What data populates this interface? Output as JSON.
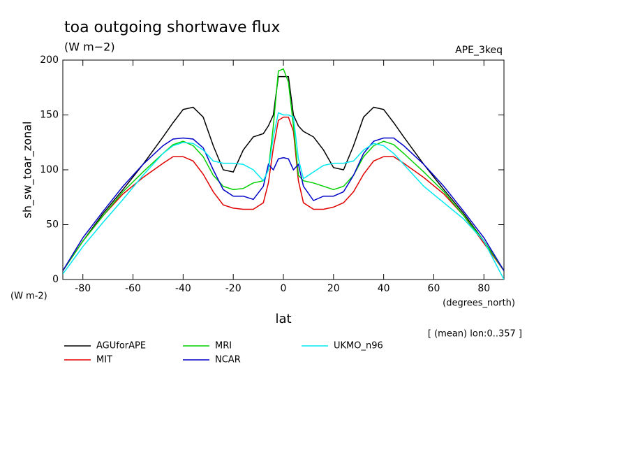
{
  "chart_data": {
    "type": "line",
    "title": "toa outgoing shortwave flux",
    "subtitle": "(W m−2)",
    "annotation_right": "APE_3keq",
    "ylabel": "sh_sw_toar_zonal",
    "yunits": "(W m-2)",
    "xunits": "(degrees_north)",
    "xlabel": "lat",
    "note": "[ (mean) lon:0..357 ]",
    "x": [
      -88,
      -80,
      -72,
      -64,
      -56,
      -48,
      -44,
      -40,
      -36,
      -32,
      -28,
      -24,
      -20,
      -16,
      -12,
      -8,
      -6,
      -4,
      -2,
      0,
      2,
      4,
      6,
      8,
      12,
      16,
      20,
      24,
      28,
      32,
      36,
      40,
      44,
      48,
      56,
      64,
      72,
      80,
      88
    ],
    "series": [
      {
        "name": "AGUforAPE",
        "color": "#000000",
        "values": [
          8,
          35,
          60,
          82,
          105,
          130,
          143,
          155,
          157,
          148,
          122,
          100,
          98,
          118,
          130,
          133,
          140,
          150,
          185,
          185,
          185,
          150,
          140,
          135,
          130,
          118,
          102,
          100,
          122,
          148,
          157,
          155,
          143,
          130,
          105,
          82,
          60,
          35,
          8
        ]
      },
      {
        "name": "MIT",
        "color": "#e00000",
        "values": [
          8,
          35,
          58,
          78,
          93,
          106,
          112,
          112,
          108,
          96,
          80,
          68,
          65,
          64,
          64,
          70,
          88,
          120,
          145,
          148,
          148,
          135,
          90,
          70,
          64,
          64,
          66,
          70,
          80,
          96,
          108,
          112,
          112,
          106,
          93,
          78,
          58,
          33,
          8
        ]
      },
      {
        "name": "MRI",
        "color": "#00d000",
        "values": [
          8,
          35,
          58,
          80,
          98,
          115,
          123,
          126,
          122,
          112,
          95,
          85,
          82,
          83,
          88,
          90,
          100,
          140,
          190,
          192,
          180,
          140,
          95,
          90,
          88,
          85,
          82,
          85,
          95,
          112,
          122,
          126,
          123,
          115,
          98,
          80,
          58,
          35,
          8
        ]
      },
      {
        "name": "NCAR",
        "color": "#0000c8",
        "values": [
          8,
          38,
          62,
          85,
          105,
          122,
          128,
          129,
          128,
          120,
          100,
          82,
          76,
          76,
          73,
          85,
          105,
          100,
          110,
          111,
          110,
          100,
          105,
          85,
          72,
          76,
          76,
          80,
          95,
          115,
          126,
          129,
          129,
          122,
          105,
          85,
          62,
          38,
          8
        ]
      },
      {
        "name": "UKMO_n96",
        "color": "#00e8f0",
        "values": [
          5,
          30,
          52,
          73,
          95,
          115,
          122,
          125,
          124,
          118,
          108,
          106,
          106,
          105,
          100,
          90,
          100,
          130,
          152,
          150,
          150,
          148,
          110,
          92,
          98,
          104,
          106,
          106,
          108,
          118,
          124,
          122,
          115,
          105,
          85,
          70,
          55,
          35,
          0
        ]
      }
    ],
    "xlim": [
      -88,
      88
    ],
    "xticks": [
      -80,
      -60,
      -40,
      -20,
      0,
      20,
      40,
      60,
      80
    ],
    "ylim": [
      0,
      200
    ],
    "yticks": [
      0,
      50,
      100,
      150,
      200
    ]
  }
}
